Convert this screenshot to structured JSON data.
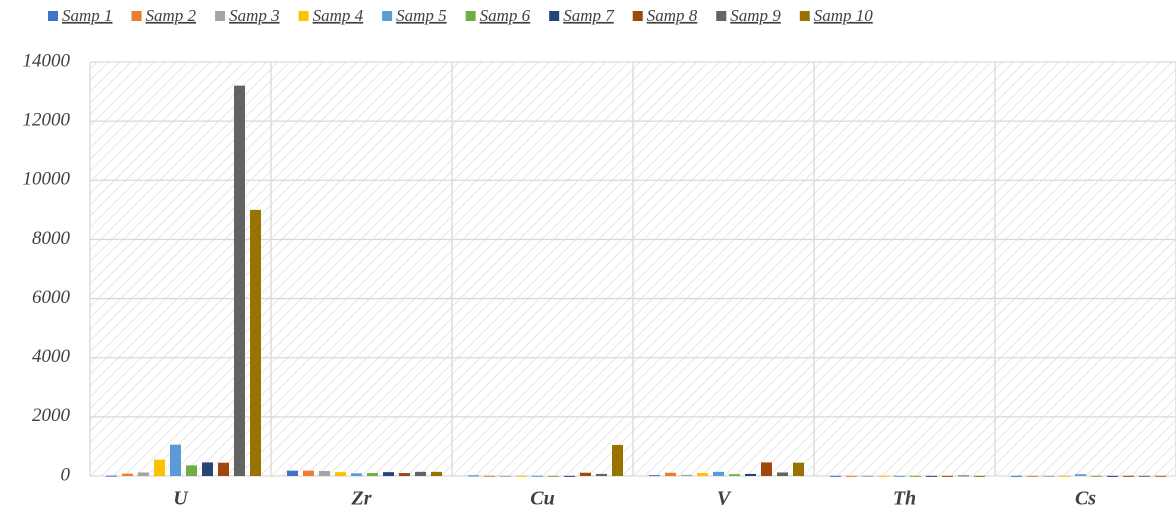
{
  "chart_data": {
    "type": "bar",
    "categories": [
      "U",
      "Zr",
      "Cu",
      "V",
      "Th",
      "Cs"
    ],
    "series": [
      {
        "name": "Samp 1",
        "color": "#4472c4",
        "values": [
          10,
          180,
          20,
          30,
          5,
          5
        ]
      },
      {
        "name": "Samp 2",
        "color": "#ed7d31",
        "values": [
          80,
          180,
          5,
          110,
          5,
          5
        ]
      },
      {
        "name": "Samp 3",
        "color": "#a5a5a5",
        "values": [
          120,
          170,
          5,
          40,
          5,
          5
        ]
      },
      {
        "name": "Samp 4",
        "color": "#ffc000",
        "values": [
          550,
          130,
          5,
          100,
          5,
          5
        ]
      },
      {
        "name": "Samp 5",
        "color": "#5b9bd5",
        "values": [
          1060,
          90,
          5,
          140,
          5,
          60
        ]
      },
      {
        "name": "Samp 6",
        "color": "#70ad47",
        "values": [
          360,
          100,
          5,
          60,
          5,
          5
        ]
      },
      {
        "name": "Samp 7",
        "color": "#264478",
        "values": [
          460,
          130,
          5,
          70,
          5,
          5
        ]
      },
      {
        "name": "Samp 8",
        "color": "#9e480e",
        "values": [
          450,
          100,
          110,
          460,
          5,
          5
        ]
      },
      {
        "name": "Samp 9",
        "color": "#636363",
        "values": [
          13200,
          140,
          70,
          120,
          20,
          5
        ]
      },
      {
        "name": "Samp 10",
        "color": "#997300",
        "values": [
          9000,
          140,
          1050,
          450,
          5,
          5
        ]
      }
    ],
    "ylim": [
      0,
      14000
    ],
    "yticks": [
      0,
      2000,
      4000,
      6000,
      8000,
      10000,
      12000,
      14000
    ],
    "grid": true,
    "legend": "top"
  }
}
